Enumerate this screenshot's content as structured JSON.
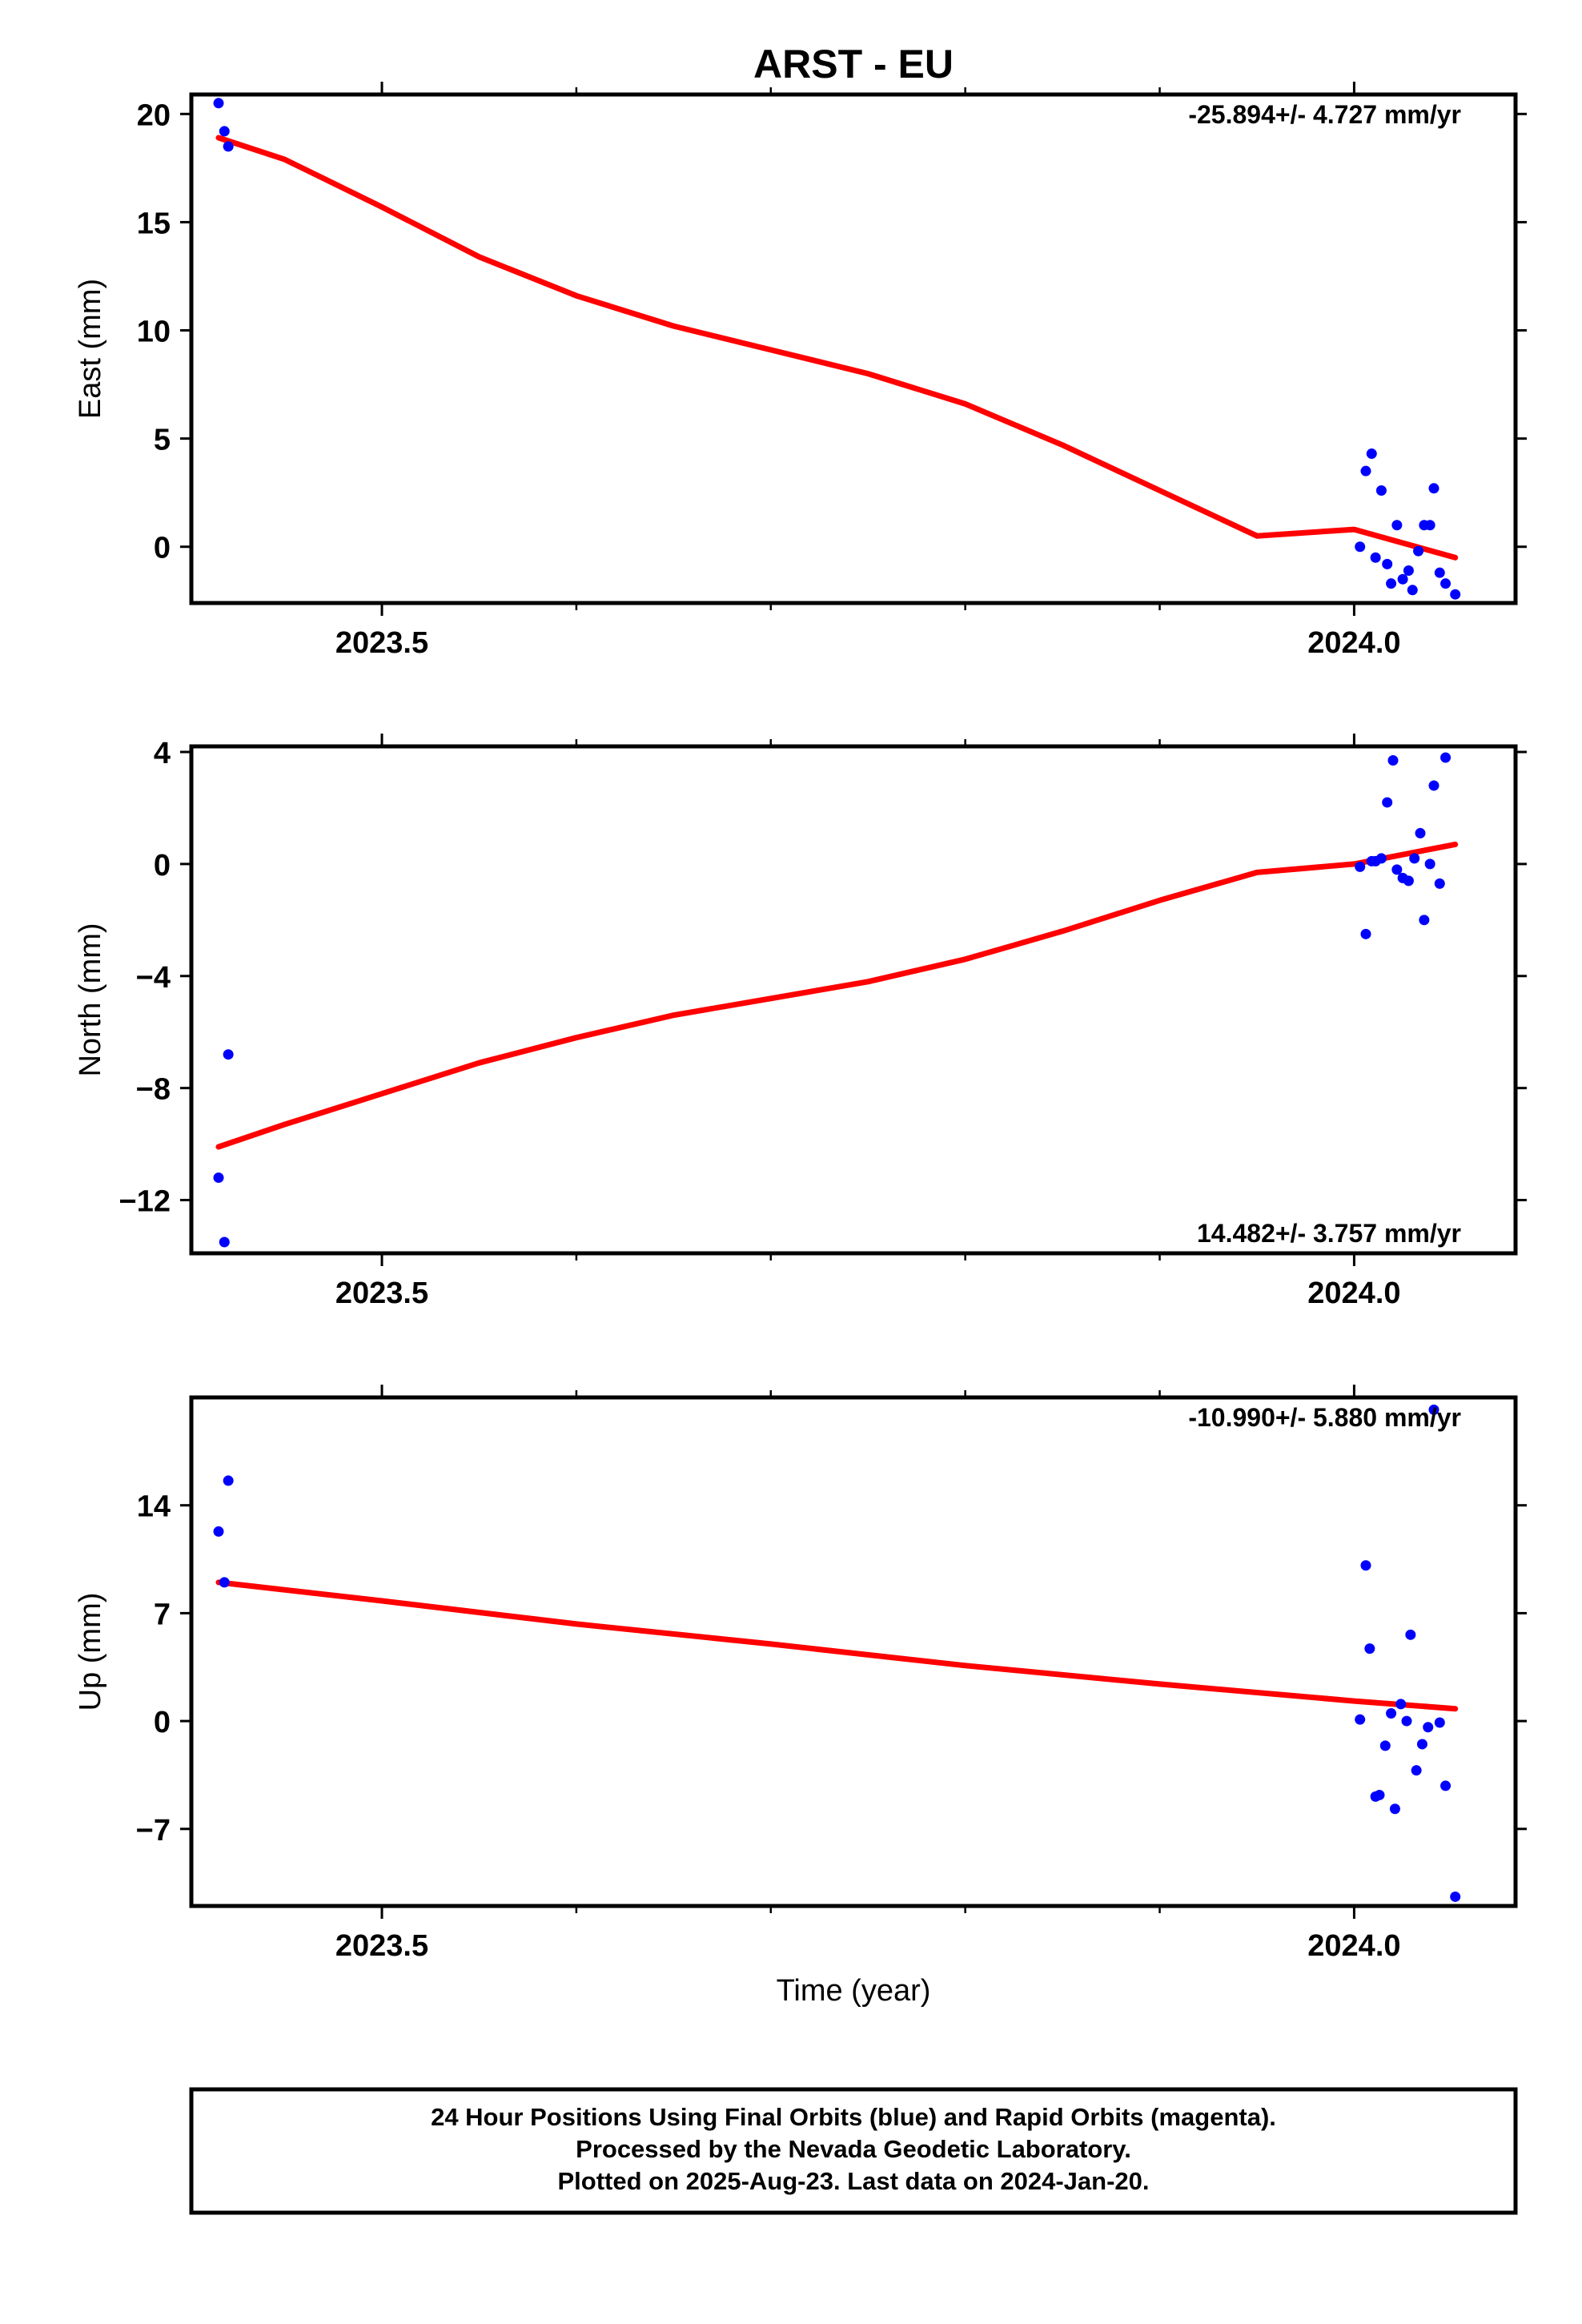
{
  "title": "ARST - EU",
  "xlabel": "Time (year)",
  "footer": {
    "line1": "24 Hour Positions Using Final Orbits (blue) and Rapid Orbits (magenta).",
    "line2": "Processed by the Nevada Geodetic Laboratory.",
    "line3": "Plotted on 2025-Aug-23. Last data on 2024-Jan-20."
  },
  "colors": {
    "points": "#0000ff",
    "fit": "#ff0000",
    "axes": "#000000"
  },
  "chart_data": [
    {
      "type": "scatter",
      "panel": "east",
      "ylabel": "East (mm)",
      "rate_label": "-25.894+/- 4.727 mm/yr",
      "rate_position": "top-right",
      "xlim": [
        2023.402,
        2024.083
      ],
      "ylim": [
        -2.6,
        20.9
      ],
      "xticks": [
        2023.5,
        2024.0
      ],
      "xtick_labels": [
        "2023.5",
        "2024.0"
      ],
      "xminor": [
        2023.4,
        2023.6,
        2023.7,
        2023.8,
        2023.9,
        2024.1
      ],
      "yticks": [
        0,
        5,
        10,
        15,
        20
      ],
      "ytick_labels": [
        "0",
        "5",
        "10",
        "15",
        "20"
      ],
      "points": [
        [
          2023.416,
          20.5
        ],
        [
          2023.419,
          19.2
        ],
        [
          2023.421,
          18.5
        ],
        [
          2024.003,
          0.0
        ],
        [
          2024.006,
          3.5
        ],
        [
          2024.009,
          4.3
        ],
        [
          2024.011,
          -0.5
        ],
        [
          2024.014,
          2.6
        ],
        [
          2024.017,
          -0.8
        ],
        [
          2024.019,
          -1.7
        ],
        [
          2024.022,
          1.0
        ],
        [
          2024.025,
          -1.5
        ],
        [
          2024.028,
          -1.1
        ],
        [
          2024.03,
          -2.0
        ],
        [
          2024.033,
          -0.2
        ],
        [
          2024.036,
          1.0
        ],
        [
          2024.039,
          1.0
        ],
        [
          2024.041,
          2.7
        ],
        [
          2024.044,
          -1.2
        ],
        [
          2024.047,
          -1.7
        ],
        [
          2024.052,
          -2.2
        ]
      ],
      "fit": [
        [
          2023.416,
          18.9
        ],
        [
          2023.45,
          17.9
        ],
        [
          2023.5,
          15.7
        ],
        [
          2023.55,
          13.4
        ],
        [
          2023.6,
          11.6
        ],
        [
          2023.65,
          10.2
        ],
        [
          2023.7,
          9.1
        ],
        [
          2023.75,
          8.0
        ],
        [
          2023.8,
          6.6
        ],
        [
          2023.85,
          4.7
        ],
        [
          2023.9,
          2.6
        ],
        [
          2023.95,
          0.5
        ],
        [
          2024.0,
          0.8
        ],
        [
          2024.052,
          -0.5
        ]
      ]
    },
    {
      "type": "scatter",
      "panel": "north",
      "ylabel": "North (mm)",
      "rate_label": "14.482+/- 3.757 mm/yr",
      "rate_position": "bottom-right",
      "xlim": [
        2023.402,
        2024.083
      ],
      "ylim": [
        -13.9,
        4.2
      ],
      "xticks": [
        2023.5,
        2024.0
      ],
      "xtick_labels": [
        "2023.5",
        "2024.0"
      ],
      "xminor": [
        2023.4,
        2023.6,
        2023.7,
        2023.8,
        2023.9,
        2024.1
      ],
      "yticks": [
        -12,
        -8,
        -4,
        0,
        4
      ],
      "ytick_labels": [
        "−12",
        "−8",
        "−4",
        "0",
        "4"
      ],
      "points": [
        [
          2023.416,
          -11.2
        ],
        [
          2023.419,
          -13.5
        ],
        [
          2023.421,
          -6.8
        ],
        [
          2024.003,
          -0.1
        ],
        [
          2024.006,
          -2.5
        ],
        [
          2024.009,
          0.1
        ],
        [
          2024.011,
          0.1
        ],
        [
          2024.014,
          0.2
        ],
        [
          2024.017,
          2.2
        ],
        [
          2024.02,
          3.7
        ],
        [
          2024.022,
          -0.2
        ],
        [
          2024.025,
          -0.5
        ],
        [
          2024.028,
          -0.6
        ],
        [
          2024.031,
          0.2
        ],
        [
          2024.034,
          1.1
        ],
        [
          2024.036,
          -2.0
        ],
        [
          2024.039,
          0.0
        ],
        [
          2024.041,
          2.8
        ],
        [
          2024.044,
          -0.7
        ],
        [
          2024.047,
          3.8
        ]
      ],
      "fit": [
        [
          2023.416,
          -10.1
        ],
        [
          2023.45,
          -9.3
        ],
        [
          2023.5,
          -8.2
        ],
        [
          2023.55,
          -7.1
        ],
        [
          2023.6,
          -6.2
        ],
        [
          2023.65,
          -5.4
        ],
        [
          2023.7,
          -4.8
        ],
        [
          2023.75,
          -4.2
        ],
        [
          2023.8,
          -3.4
        ],
        [
          2023.85,
          -2.4
        ],
        [
          2023.9,
          -1.3
        ],
        [
          2023.95,
          -0.3
        ],
        [
          2024.0,
          0.0
        ],
        [
          2024.052,
          0.7
        ]
      ]
    },
    {
      "type": "scatter",
      "panel": "up",
      "ylabel": "Up (mm)",
      "rate_label": "-10.990+/- 5.880 mm/yr",
      "rate_position": "top-right",
      "xlim": [
        2023.402,
        2024.083
      ],
      "ylim": [
        -12.0,
        21.0
      ],
      "xticks": [
        2023.5,
        2024.0
      ],
      "xtick_labels": [
        "2023.5",
        "2024.0"
      ],
      "xminor": [
        2023.4,
        2023.6,
        2023.7,
        2023.8,
        2023.9,
        2024.1
      ],
      "yticks": [
        -7,
        0,
        7,
        14
      ],
      "ytick_labels": [
        "−7",
        "0",
        "7",
        "14"
      ],
      "points": [
        [
          2023.416,
          12.3
        ],
        [
          2023.419,
          9.0
        ],
        [
          2023.421,
          15.6
        ],
        [
          2024.003,
          0.1
        ],
        [
          2024.006,
          10.1
        ],
        [
          2024.008,
          4.7
        ],
        [
          2024.011,
          -4.9
        ],
        [
          2024.013,
          -4.8
        ],
        [
          2024.016,
          -1.6
        ],
        [
          2024.019,
          0.5
        ],
        [
          2024.021,
          -5.7
        ],
        [
          2024.024,
          1.1
        ],
        [
          2024.027,
          0.0
        ],
        [
          2024.029,
          5.6
        ],
        [
          2024.032,
          -3.2
        ],
        [
          2024.035,
          -1.5
        ],
        [
          2024.038,
          -0.4
        ],
        [
          2024.041,
          20.2
        ],
        [
          2024.044,
          -0.1
        ],
        [
          2024.047,
          -4.2
        ],
        [
          2024.052,
          -11.4
        ]
      ],
      "fit": [
        [
          2023.416,
          9.0
        ],
        [
          2023.5,
          7.8
        ],
        [
          2023.6,
          6.3
        ],
        [
          2023.7,
          5.0
        ],
        [
          2023.8,
          3.6
        ],
        [
          2023.9,
          2.4
        ],
        [
          2024.0,
          1.3
        ],
        [
          2024.052,
          0.8
        ]
      ]
    }
  ]
}
